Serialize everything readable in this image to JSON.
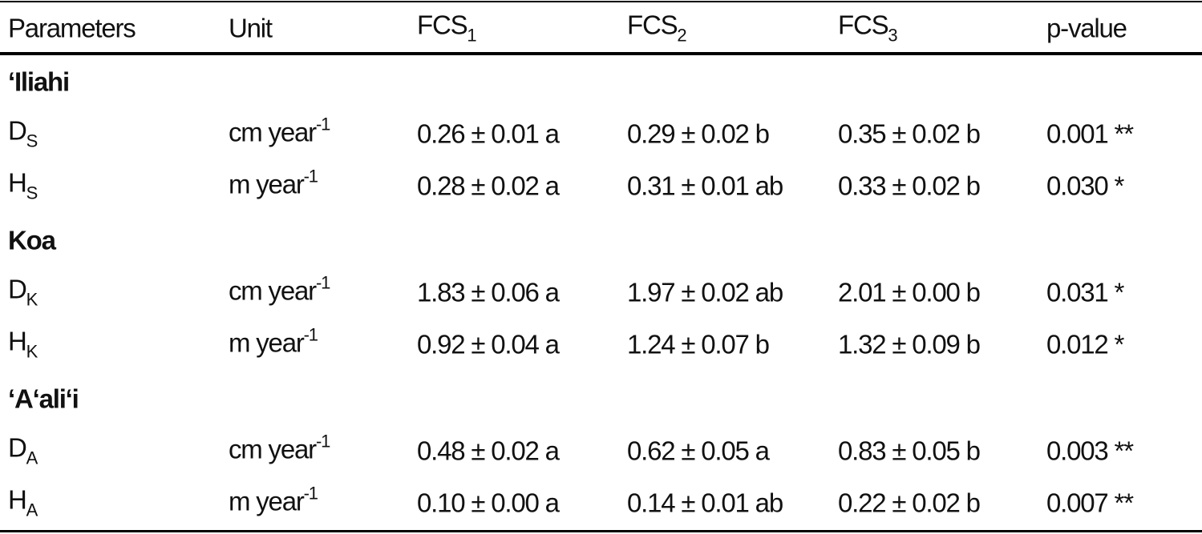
{
  "table": {
    "header": [
      {
        "text": "Parameters"
      },
      {
        "text": "Unit"
      },
      {
        "text": "FCS",
        "sub": "1"
      },
      {
        "text": "FCS",
        "sub": "2"
      },
      {
        "text": "FCS",
        "sub": "3"
      },
      {
        "text": "p-value"
      }
    ],
    "groups": [
      {
        "name": "‘Iliahi",
        "rows": [
          {
            "param": {
              "text": "D",
              "sub": "S"
            },
            "unit": {
              "text": "cm year",
              "sup": "-1"
            },
            "cells": [
              "0.26 ± 0.01 a",
              "0.29 ± 0.02 b",
              "0.35 ± 0.02 b",
              "0.001 **"
            ]
          },
          {
            "param": {
              "text": "H",
              "sub": "S"
            },
            "unit": {
              "text": "m year",
              "sup": "-1"
            },
            "cells": [
              "0.28 ± 0.02 a",
              "0.31 ± 0.01 ab",
              "0.33 ± 0.02 b",
              "0.030 *"
            ]
          }
        ]
      },
      {
        "name": "Koa",
        "rows": [
          {
            "param": {
              "text": "D",
              "sub": "K"
            },
            "unit": {
              "text": "cm year",
              "sup": "-1"
            },
            "cells": [
              "1.83 ± 0.06 a",
              "1.97 ± 0.02 ab",
              "2.01 ± 0.00 b",
              "0.031 *"
            ]
          },
          {
            "param": {
              "text": "H",
              "sub": "K"
            },
            "unit": {
              "text": "m year",
              "sup": "-1"
            },
            "cells": [
              "0.92 ± 0.04 a",
              "1.24 ± 0.07 b",
              "1.32 ± 0.09 b",
              "0.012 *"
            ]
          }
        ]
      },
      {
        "name": "‘A‘ali‘i",
        "rows": [
          {
            "param": {
              "text": "D",
              "sub": "A"
            },
            "unit": {
              "text": "cm year",
              "sup": "-1"
            },
            "cells": [
              "0.48 ± 0.02 a",
              "0.62 ± 0.05 a",
              "0.83 ± 0.05 b",
              "0.003 **"
            ]
          },
          {
            "param": {
              "text": "H",
              "sub": "A"
            },
            "unit": {
              "text": "m year",
              "sup": "-1"
            },
            "cells": [
              "0.10 ± 0.00 a",
              "0.14 ± 0.01 ab",
              "0.22 ± 0.02 b",
              "0.007 **"
            ]
          }
        ]
      }
    ]
  }
}
